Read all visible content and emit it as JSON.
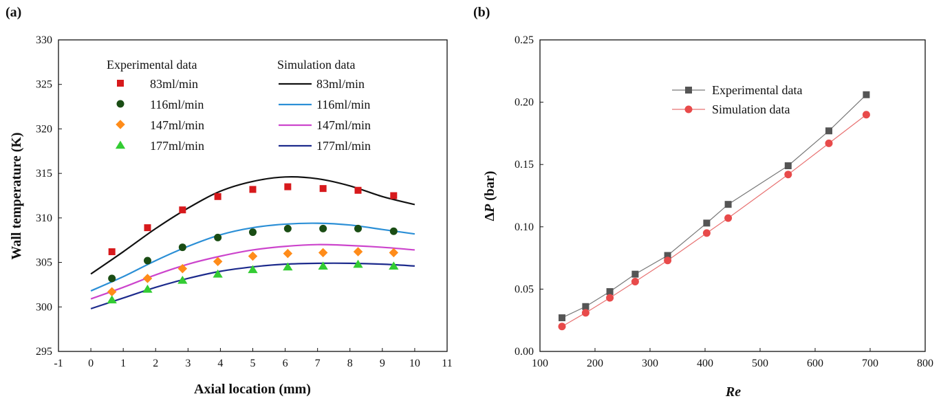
{
  "chart_data": [
    {
      "type": "scatter",
      "panel_label": "(a)",
      "xlabel": "Axial location (mm)",
      "ylabel": "Wall temperature (K)",
      "xlim": [
        -1,
        11
      ],
      "ylim": [
        295,
        330
      ],
      "x_ticks": [
        -1,
        0,
        1,
        2,
        3,
        4,
        5,
        6,
        7,
        8,
        9,
        10,
        11
      ],
      "y_ticks": [
        295,
        300,
        305,
        310,
        315,
        320,
        325,
        330
      ],
      "legend": {
        "experimental_title": "Experimental data",
        "simulation_title": "Simulation data"
      },
      "experimental": [
        {
          "name": "83ml/min",
          "marker": "square",
          "color": "#d7191c",
          "x": [
            0.65,
            1.75,
            2.83,
            3.92,
            5.0,
            6.08,
            7.17,
            8.25,
            9.35
          ],
          "y": [
            306.2,
            308.9,
            310.9,
            312.4,
            313.2,
            313.5,
            313.3,
            313.1,
            312.5
          ]
        },
        {
          "name": "116ml/min",
          "marker": "circle",
          "color": "#1a4d14",
          "x": [
            0.65,
            1.75,
            2.83,
            3.92,
            5.0,
            6.08,
            7.17,
            8.25,
            9.35
          ],
          "y": [
            303.2,
            305.2,
            306.7,
            307.8,
            308.4,
            308.8,
            308.8,
            308.8,
            308.5
          ]
        },
        {
          "name": "147ml/min",
          "marker": "diamond",
          "color": "#ff8c1a",
          "x": [
            0.65,
            1.75,
            2.83,
            3.92,
            5.0,
            6.08,
            7.17,
            8.25,
            9.35
          ],
          "y": [
            301.7,
            303.2,
            304.3,
            305.1,
            305.7,
            306.0,
            306.1,
            306.2,
            306.1
          ]
        },
        {
          "name": "177ml/min",
          "marker": "triangle",
          "color": "#33cc33",
          "x": [
            0.65,
            1.75,
            2.83,
            3.92,
            5.0,
            6.08,
            7.17,
            8.25,
            9.35
          ],
          "y": [
            300.8,
            302.0,
            303.0,
            303.7,
            304.2,
            304.5,
            304.6,
            304.8,
            304.6
          ]
        }
      ],
      "simulation": [
        {
          "name": "83ml/min",
          "color": "#111111",
          "x": [
            0,
            1,
            2,
            3,
            4,
            5,
            6,
            7,
            8,
            9,
            10
          ],
          "y": [
            303.7,
            306.2,
            308.8,
            311.1,
            313.0,
            314.1,
            314.6,
            314.4,
            313.6,
            312.4,
            311.5
          ]
        },
        {
          "name": "116ml/min",
          "color": "#2b8fd6",
          "x": [
            0,
            1,
            2,
            3,
            4,
            5,
            6,
            7,
            8,
            9,
            10
          ],
          "y": [
            301.8,
            303.4,
            305.2,
            306.8,
            308.1,
            308.9,
            309.3,
            309.4,
            309.2,
            308.7,
            308.2
          ]
        },
        {
          "name": "147ml/min",
          "color": "#cc44cc",
          "x": [
            0,
            1,
            2,
            3,
            4,
            5,
            6,
            7,
            8,
            9,
            10
          ],
          "y": [
            300.9,
            302.2,
            303.6,
            304.8,
            305.7,
            306.4,
            306.8,
            307.0,
            306.9,
            306.7,
            306.4
          ]
        },
        {
          "name": "177ml/min",
          "color": "#1c2a8c",
          "x": [
            0,
            1,
            2,
            3,
            4,
            5,
            6,
            7,
            8,
            9,
            10
          ],
          "y": [
            299.8,
            301.0,
            302.2,
            303.2,
            304.0,
            304.5,
            304.8,
            304.9,
            304.9,
            304.8,
            304.6
          ]
        }
      ]
    },
    {
      "type": "line",
      "panel_label": "(b)",
      "xlabel": "Re",
      "ylabel_prefix": "Δ",
      "ylabel_var": "P",
      "ylabel_suffix": " (bar)",
      "xlim": [
        100,
        800
      ],
      "ylim": [
        0,
        0.25
      ],
      "x_ticks": [
        "100",
        "200",
        "300",
        "400",
        "500",
        "600",
        "700",
        "800"
      ],
      "y_ticks": [
        "0.00",
        "0.05",
        "0.10",
        "0.15",
        "0.20",
        "0.25"
      ],
      "series": [
        {
          "name": "Experimental data",
          "marker": "square",
          "color": "#555555",
          "line_color": "#777777",
          "x": [
            140,
            183,
            227,
            273,
            332,
            403,
            442,
            551,
            625,
            693
          ],
          "y": [
            0.027,
            0.036,
            0.048,
            0.062,
            0.077,
            0.103,
            0.118,
            0.149,
            0.177,
            0.206
          ]
        },
        {
          "name": "Simulation data",
          "marker": "circle",
          "color": "#e84a4a",
          "line_color": "#e87070",
          "x": [
            140,
            183,
            227,
            273,
            332,
            403,
            442,
            551,
            625,
            693
          ],
          "y": [
            0.02,
            0.031,
            0.043,
            0.056,
            0.073,
            0.095,
            0.107,
            0.142,
            0.167,
            0.19
          ]
        }
      ]
    }
  ]
}
